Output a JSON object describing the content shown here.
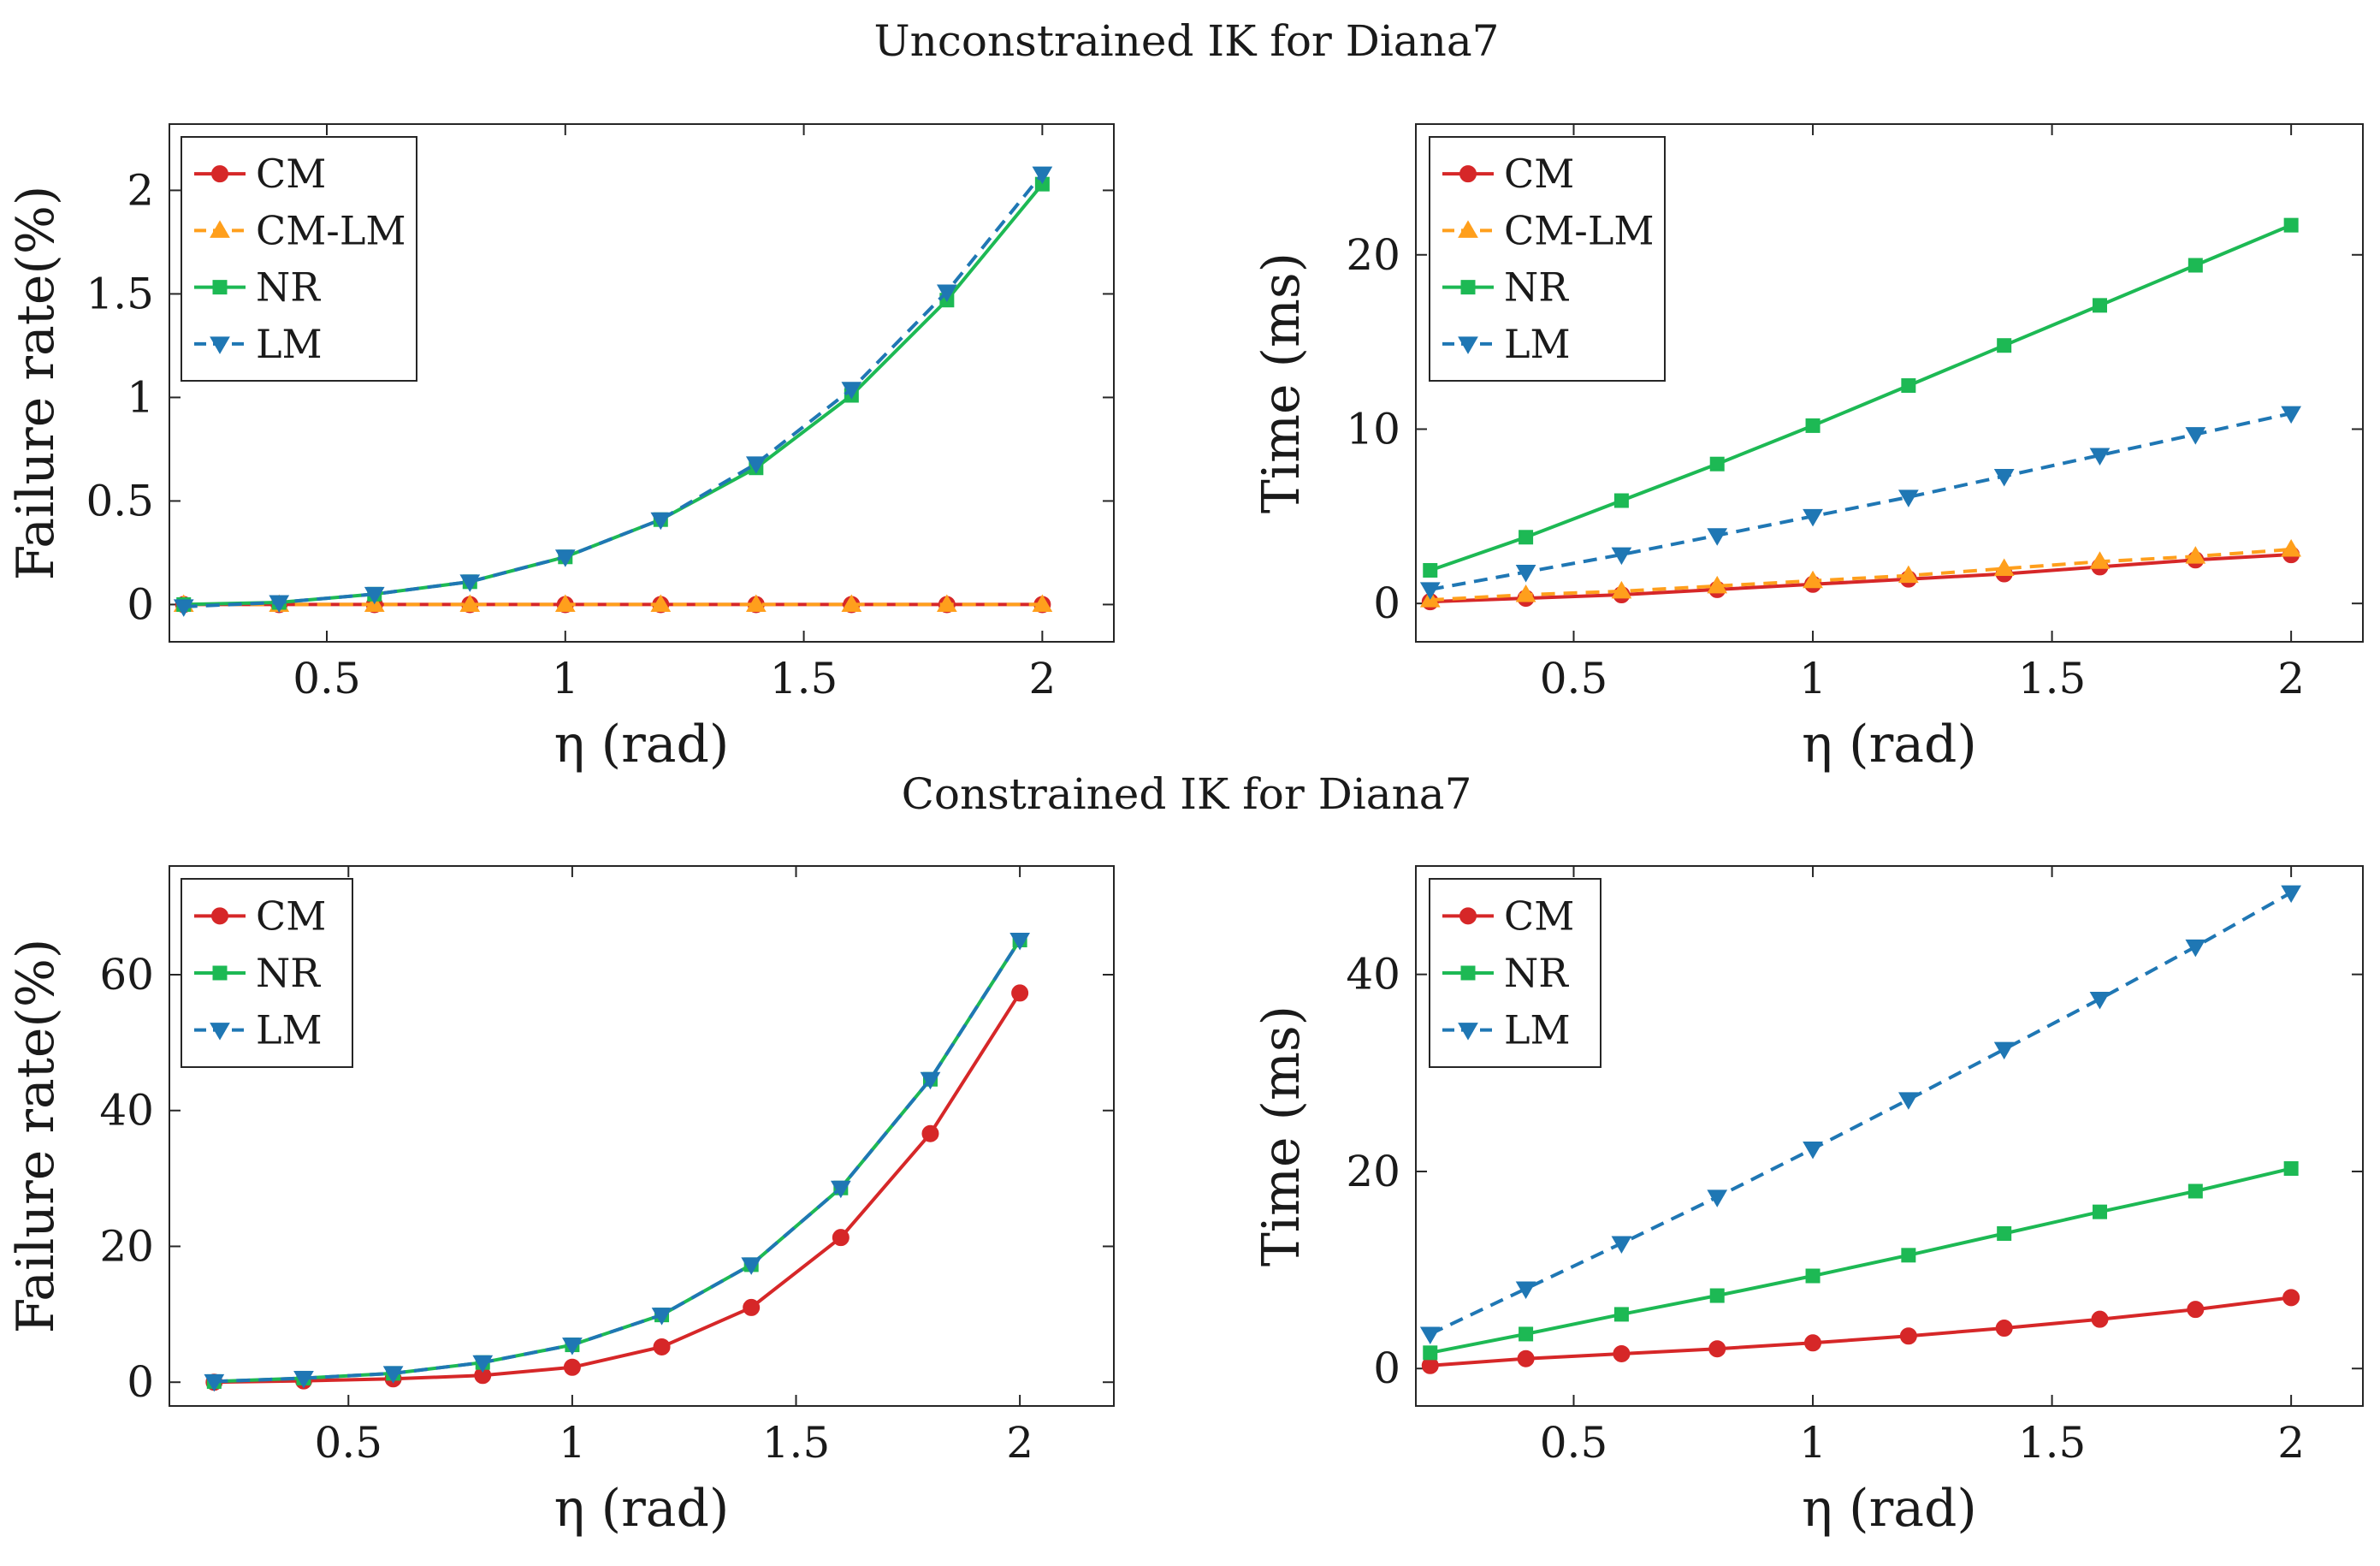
{
  "figure": {
    "titles": [
      "Unconstrained IK for Diana7",
      "Constrained IK for Diana7"
    ]
  },
  "colors": {
    "CM": "#d62728",
    "CM-LM": "#ff9f1c",
    "NR": "#1db954",
    "LM": "#1f77b4"
  },
  "chart_data": [
    {
      "id": "unconstrained-failure",
      "type": "line",
      "title": "Unconstrained IK for Diana7",
      "xlabel": "η (rad)",
      "ylabel": "Failure rate(%)",
      "xlim": [
        0.17,
        2.15
      ],
      "ylim": [
        -0.18,
        2.32
      ],
      "xticks": [
        0.5,
        1,
        1.5,
        2
      ],
      "xtick_labels": [
        "0.5",
        "1",
        "1.5",
        "2"
      ],
      "yticks": [
        0,
        0.5,
        1,
        1.5,
        2
      ],
      "ytick_labels": [
        "0",
        "0.5",
        "1",
        "1.5",
        "2"
      ],
      "x": [
        0.2,
        0.4,
        0.6,
        0.8,
        1.0,
        1.2,
        1.4,
        1.6,
        1.8,
        2.0
      ],
      "series": [
        {
          "name": "CM",
          "style": "solid",
          "marker": "circle",
          "values": [
            0,
            0,
            0,
            0,
            0,
            0,
            0,
            0,
            0,
            0
          ]
        },
        {
          "name": "CM-LM",
          "style": "dashed",
          "marker": "triangle-up",
          "values": [
            0,
            0,
            0,
            0,
            0,
            0,
            0,
            0,
            0,
            0
          ]
        },
        {
          "name": "NR",
          "style": "solid",
          "marker": "square",
          "values": [
            0,
            0.01,
            0.05,
            0.11,
            0.23,
            0.41,
            0.66,
            1.01,
            1.47,
            2.03
          ]
        },
        {
          "name": "LM",
          "style": "dashed",
          "marker": "triangle-down",
          "values": [
            -0.01,
            0.01,
            0.05,
            0.11,
            0.23,
            0.41,
            0.68,
            1.04,
            1.51,
            2.08
          ]
        }
      ],
      "legend": {
        "position": "top-left",
        "entries": [
          "CM",
          "CM-LM",
          "NR",
          "LM"
        ]
      }
    },
    {
      "id": "unconstrained-time",
      "type": "line",
      "title": "",
      "xlabel": "η (rad)",
      "ylabel": "Time (ms)",
      "xlim": [
        0.17,
        2.15
      ],
      "ylim": [
        -2.2,
        27.5
      ],
      "xticks": [
        0.5,
        1,
        1.5,
        2
      ],
      "xtick_labels": [
        "0.5",
        "1",
        "1.5",
        "2"
      ],
      "yticks": [
        0,
        10,
        20
      ],
      "ytick_labels": [
        "0",
        "10",
        "20"
      ],
      "x": [
        0.2,
        0.4,
        0.6,
        0.8,
        1.0,
        1.2,
        1.4,
        1.6,
        1.8,
        2.0
      ],
      "series": [
        {
          "name": "CM",
          "style": "solid",
          "marker": "circle",
          "values": [
            0.1,
            0.3,
            0.5,
            0.8,
            1.1,
            1.4,
            1.7,
            2.1,
            2.5,
            2.8
          ]
        },
        {
          "name": "CM-LM",
          "style": "dashed",
          "marker": "triangle-up",
          "values": [
            0.2,
            0.5,
            0.7,
            1.0,
            1.3,
            1.6,
            2.0,
            2.4,
            2.7,
            3.1
          ]
        },
        {
          "name": "NR",
          "style": "solid",
          "marker": "square",
          "values": [
            1.9,
            3.8,
            5.9,
            8.0,
            10.2,
            12.5,
            14.8,
            17.1,
            19.4,
            21.7
          ]
        },
        {
          "name": "LM",
          "style": "dashed",
          "marker": "triangle-down",
          "values": [
            0.8,
            1.8,
            2.8,
            3.9,
            5.0,
            6.1,
            7.3,
            8.5,
            9.7,
            10.9
          ]
        }
      ],
      "legend": {
        "position": "top-left",
        "entries": [
          "CM",
          "CM-LM",
          "NR",
          "LM"
        ]
      }
    },
    {
      "id": "constrained-failure",
      "type": "line",
      "title": "Constrained IK for Diana7",
      "xlabel": "η (rad)",
      "ylabel": "Failure rate(%)",
      "xlim": [
        0.1,
        2.21
      ],
      "ylim": [
        -3.5,
        76
      ],
      "xticks": [
        0.5,
        1,
        1.5,
        2
      ],
      "xtick_labels": [
        "0.5",
        "1",
        "1.5",
        "2"
      ],
      "yticks": [
        0,
        20,
        40,
        60
      ],
      "ytick_labels": [
        "0",
        "20",
        "40",
        "60"
      ],
      "x": [
        0.2,
        0.4,
        0.6,
        0.8,
        1.0,
        1.2,
        1.4,
        1.6,
        1.8,
        2.0
      ],
      "series": [
        {
          "name": "CM",
          "style": "solid",
          "marker": "circle",
          "values": [
            0,
            0.2,
            0.5,
            1.0,
            2.2,
            5.2,
            11.0,
            21.3,
            36.6,
            57.3
          ]
        },
        {
          "name": "NR",
          "style": "solid",
          "marker": "square",
          "values": [
            0.1,
            0.6,
            1.3,
            2.9,
            5.5,
            9.9,
            17.3,
            28.6,
            44.6,
            65.1
          ]
        },
        {
          "name": "LM",
          "style": "dashed",
          "marker": "triangle-down",
          "values": [
            0.1,
            0.6,
            1.3,
            2.9,
            5.5,
            9.9,
            17.3,
            28.6,
            44.6,
            65.1
          ]
        }
      ],
      "legend": {
        "position": "top-left",
        "entries": [
          "CM",
          "NR",
          "LM"
        ]
      }
    },
    {
      "id": "constrained-time",
      "type": "line",
      "title": "",
      "xlabel": "η (rad)",
      "ylabel": "Time (ms)",
      "xlim": [
        0.17,
        2.15
      ],
      "ylim": [
        -3.8,
        51
      ],
      "xticks": [
        0.5,
        1,
        1.5,
        2
      ],
      "xtick_labels": [
        "0.5",
        "1",
        "1.5",
        "2"
      ],
      "yticks": [
        0,
        20,
        40
      ],
      "ytick_labels": [
        "0",
        "20",
        "40"
      ],
      "x": [
        0.2,
        0.4,
        0.6,
        0.8,
        1.0,
        1.2,
        1.4,
        1.6,
        1.8,
        2.0
      ],
      "series": [
        {
          "name": "CM",
          "style": "solid",
          "marker": "circle",
          "values": [
            0.3,
            1.0,
            1.5,
            2.0,
            2.6,
            3.3,
            4.1,
            5.0,
            6.0,
            7.2
          ]
        },
        {
          "name": "NR",
          "style": "solid",
          "marker": "square",
          "values": [
            1.6,
            3.5,
            5.5,
            7.4,
            9.4,
            11.5,
            13.7,
            15.9,
            18.0,
            20.3
          ]
        },
        {
          "name": "LM",
          "style": "dashed",
          "marker": "triangle-down",
          "values": [
            3.5,
            8.1,
            12.7,
            17.4,
            22.3,
            27.3,
            32.4,
            37.5,
            42.8,
            48.3
          ]
        }
      ],
      "legend": {
        "position": "top-left",
        "entries": [
          "CM",
          "NR",
          "LM"
        ]
      }
    }
  ]
}
